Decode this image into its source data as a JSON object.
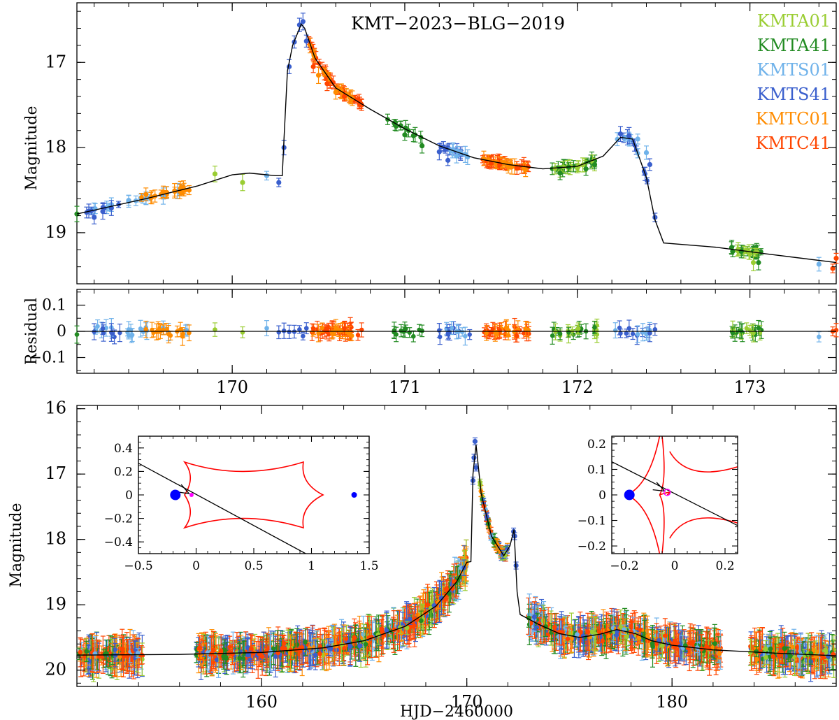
{
  "chart_data": [
    {
      "type": "scatter",
      "panel": "top",
      "title": "KMT−2023−BLG−2019",
      "ylabel": "Magnitude",
      "xlim": [
        169.1,
        173.5
      ],
      "ylim": [
        19.6,
        16.3
      ],
      "yticks": [
        17,
        18,
        19
      ],
      "yticklabels": [
        "17",
        "18",
        "19"
      ],
      "legend_position": "top-right",
      "model_curve": [
        [
          169.1,
          18.78
        ],
        [
          169.5,
          18.6
        ],
        [
          169.8,
          18.45
        ],
        [
          170.0,
          18.32
        ],
        [
          170.1,
          18.3
        ],
        [
          170.25,
          18.33
        ],
        [
          170.29,
          18.33
        ],
        [
          170.3,
          17.9
        ],
        [
          170.32,
          17.1
        ],
        [
          170.35,
          16.8
        ],
        [
          170.4,
          16.55
        ],
        [
          170.42,
          16.6
        ],
        [
          170.48,
          16.95
        ],
        [
          170.6,
          17.3
        ],
        [
          170.8,
          17.55
        ],
        [
          171.0,
          17.78
        ],
        [
          171.2,
          17.98
        ],
        [
          171.4,
          18.12
        ],
        [
          171.6,
          18.2
        ],
        [
          171.8,
          18.25
        ],
        [
          172.0,
          18.22
        ],
        [
          172.15,
          18.1
        ],
        [
          172.25,
          17.88
        ],
        [
          172.32,
          17.9
        ],
        [
          172.4,
          18.35
        ],
        [
          172.45,
          18.85
        ],
        [
          172.5,
          19.12
        ],
        [
          172.8,
          19.17
        ],
        [
          173.1,
          19.25
        ],
        [
          173.5,
          19.35
        ]
      ],
      "series": [
        {
          "name": "KMTA01",
          "color": "#9acd32",
          "points": [
            [
              169.9,
              18.31
            ],
            [
              170.06,
              18.41
            ],
            [
              171.9,
              18.28
            ],
            [
              172.0,
              18.24
            ],
            [
              172.1,
              18.2
            ],
            [
              173.0,
              19.25
            ],
            [
              173.02,
              19.35
            ]
          ]
        },
        {
          "name": "KMTA41",
          "color": "#228b22",
          "points": [
            [
              169.1,
              18.78
            ],
            [
              170.95,
              17.75
            ],
            [
              171.0,
              17.85
            ],
            [
              171.05,
              17.86
            ],
            [
              171.1,
              17.98
            ],
            [
              171.9,
              18.3
            ],
            [
              171.95,
              18.23
            ],
            [
              172.05,
              18.25
            ],
            [
              172.1,
              18.2
            ],
            [
              172.9,
              19.22
            ],
            [
              172.95,
              19.22
            ],
            [
              173.05,
              19.35
            ]
          ]
        },
        {
          "name": "KMTS01",
          "color": "#6fb2ea",
          "points": [
            [
              169.3,
              18.67
            ],
            [
              169.4,
              18.62
            ],
            [
              169.5,
              18.6
            ],
            [
              169.6,
              18.57
            ],
            [
              169.4,
              18.63
            ],
            [
              170.2,
              18.33
            ],
            [
              171.3,
              18.1
            ],
            [
              171.35,
              18.08
            ],
            [
              172.35,
              17.9
            ],
            [
              172.4,
              18.06
            ],
            [
              173.4,
              19.37
            ]
          ]
        },
        {
          "name": "KMTS41",
          "color": "#3a5fcd",
          "points": [
            [
              169.2,
              18.82
            ],
            [
              169.25,
              18.75
            ],
            [
              169.3,
              18.71
            ],
            [
              170.27,
              18.41
            ],
            [
              170.3,
              18.0
            ],
            [
              170.33,
              17.05
            ],
            [
              170.36,
              16.76
            ],
            [
              170.39,
              16.56
            ],
            [
              170.41,
              16.52
            ],
            [
              170.43,
              16.75
            ],
            [
              171.2,
              18.05
            ],
            [
              171.25,
              18.15
            ],
            [
              172.25,
              17.84
            ],
            [
              172.3,
              17.86
            ],
            [
              172.42,
              18.2
            ],
            [
              172.45,
              18.82
            ]
          ]
        },
        {
          "name": "KMTC01",
          "color": "#ff8c00",
          "points": [
            [
              169.5,
              18.55
            ],
            [
              169.6,
              18.52
            ],
            [
              169.7,
              18.48
            ],
            [
              169.75,
              18.5
            ],
            [
              170.5,
              17.15
            ],
            [
              170.6,
              17.35
            ],
            [
              171.6,
              18.22
            ],
            [
              171.7,
              18.26
            ]
          ]
        },
        {
          "name": "KMTC41",
          "color": "#ff4500",
          "points": [
            [
              170.47,
              17.05
            ],
            [
              170.55,
              17.25
            ],
            [
              170.65,
              17.4
            ],
            [
              170.75,
              17.5
            ],
            [
              171.5,
              18.18
            ],
            [
              171.55,
              18.2
            ],
            [
              171.65,
              18.24
            ],
            [
              173.5,
              19.3
            ],
            [
              173.48,
              19.42
            ]
          ]
        }
      ]
    },
    {
      "type": "scatter",
      "panel": "residual",
      "ylabel": "Residual",
      "xlim": [
        169.1,
        173.5
      ],
      "ylim": [
        -0.16,
        0.16
      ],
      "yticks": [
        0.1,
        0,
        -0.1
      ],
      "yticklabels": [
        "0.1",
        "0",
        "−0.1"
      ],
      "xticks": [
        170,
        171,
        172,
        173
      ],
      "xticklabels": [
        "170",
        "171",
        "172",
        "173"
      ]
    },
    {
      "type": "scatter",
      "panel": "bottom",
      "xlabel": "HJD−2460000",
      "ylabel": "Magnitude",
      "xlim": [
        151,
        188
      ],
      "ylim": [
        20.25,
        15.95
      ],
      "xticks": [
        160,
        170,
        180
      ],
      "xticklabels": [
        "160",
        "170",
        "180"
      ],
      "yticks": [
        16,
        17,
        18,
        19,
        20
      ],
      "yticklabels": [
        "16",
        "17",
        "18",
        "19",
        "20"
      ],
      "model_curve": [
        [
          151,
          19.77
        ],
        [
          156,
          19.76
        ],
        [
          160,
          19.73
        ],
        [
          163,
          19.66
        ],
        [
          165,
          19.55
        ],
        [
          167,
          19.33
        ],
        [
          168.5,
          19.02
        ],
        [
          169.5,
          18.65
        ],
        [
          170.0,
          18.35
        ],
        [
          170.2,
          18.34
        ],
        [
          170.3,
          17.0
        ],
        [
          170.45,
          16.55
        ],
        [
          170.7,
          17.3
        ],
        [
          171.2,
          17.95
        ],
        [
          171.8,
          18.25
        ],
        [
          172.1,
          18.1
        ],
        [
          172.3,
          17.85
        ],
        [
          172.45,
          18.8
        ],
        [
          172.6,
          19.15
        ],
        [
          173.5,
          19.3
        ],
        [
          174.5,
          19.44
        ],
        [
          175.5,
          19.5
        ],
        [
          176.5,
          19.45
        ],
        [
          177.3,
          19.38
        ],
        [
          178.2,
          19.44
        ],
        [
          179,
          19.55
        ],
        [
          180,
          19.62
        ],
        [
          182,
          19.69
        ],
        [
          185,
          19.74
        ],
        [
          188,
          19.78
        ]
      ]
    },
    {
      "type": "line",
      "panel": "inset-left",
      "xlim": [
        -0.5,
        1.5
      ],
      "ylim": [
        -0.5,
        0.5
      ],
      "xticks": [
        -0.5,
        0,
        0.5,
        1,
        1.5
      ],
      "xticklabels": [
        "−0.5",
        "0",
        "0.5",
        "1",
        "1.5"
      ],
      "yticks": [
        0.4,
        0.2,
        0,
        -0.2,
        -0.4
      ],
      "yticklabels": [
        "0.4",
        "0.2",
        "0",
        "−0.2",
        "−0.4"
      ],
      "trajectory": [
        [
          -0.5,
          0.27
        ],
        [
          0.95,
          -0.5
        ]
      ],
      "lens_masses": [
        {
          "x": -0.18,
          "y": 0,
          "color": "#0000ff",
          "size": "large"
        },
        {
          "x": 1.37,
          "y": 0,
          "color": "#0000ff",
          "size": "small"
        }
      ],
      "source": {
        "x": -0.04,
        "y": 0.0,
        "color": "#ff00ff"
      },
      "caustic_color": "#ff0000"
    },
    {
      "type": "line",
      "panel": "inset-right",
      "xlim": [
        -0.25,
        0.25
      ],
      "ylim": [
        -0.23,
        0.23
      ],
      "xticks": [
        -0.2,
        0,
        0.2
      ],
      "xticklabels": [
        "−0.2",
        "0",
        "0.2"
      ],
      "yticks": [
        0.2,
        0.1,
        0,
        -0.1,
        -0.2
      ],
      "yticklabels": [
        "0.2",
        "0.1",
        "0",
        "−0.1",
        "−0.2"
      ],
      "trajectory": [
        [
          -0.25,
          0.13
        ],
        [
          0.25,
          -0.12
        ]
      ],
      "lens_masses": [
        {
          "x": -0.18,
          "y": 0,
          "color": "#0000ff",
          "size": "large"
        }
      ],
      "source": {
        "x": -0.03,
        "y": 0.01,
        "color": "#ff00ff"
      },
      "caustic_color": "#ff0000"
    }
  ]
}
